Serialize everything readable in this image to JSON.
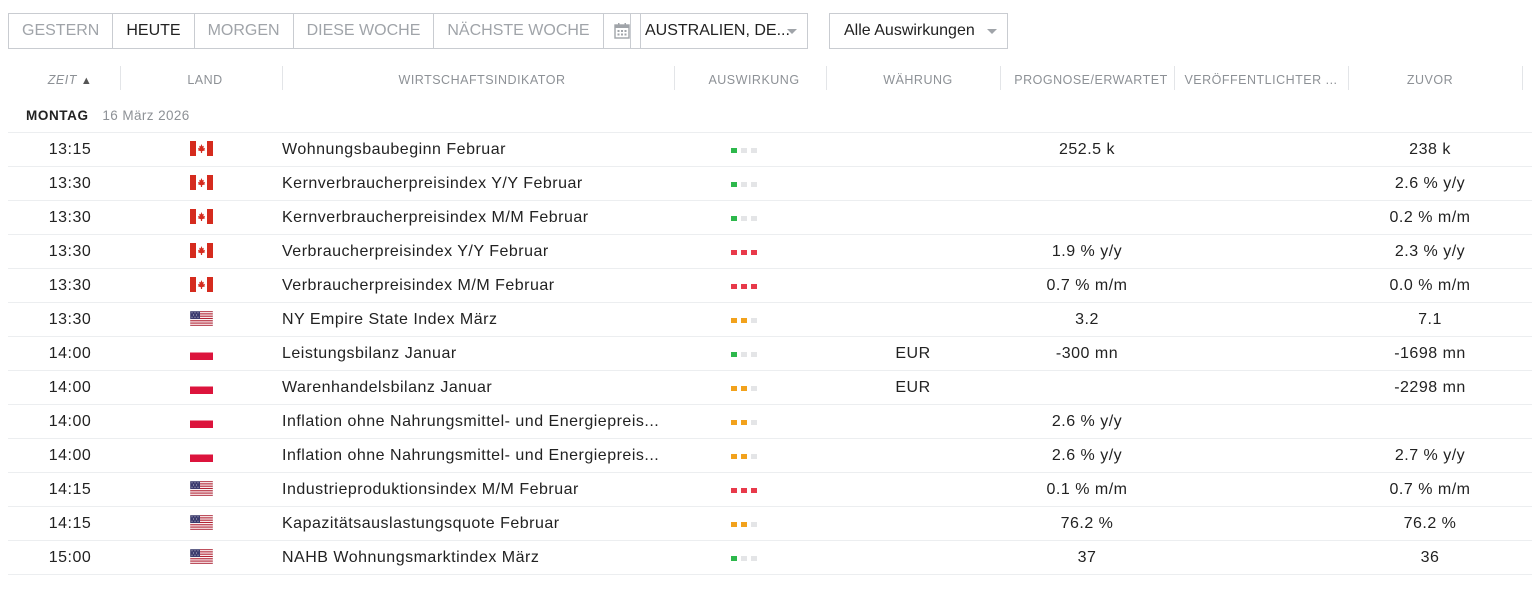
{
  "toolbar": {
    "date_buttons": [
      {
        "label": "GESTERN",
        "active": false
      },
      {
        "label": "HEUTE",
        "active": true
      },
      {
        "label": "MORGEN",
        "active": false
      },
      {
        "label": "DIESE WOCHE",
        "active": false
      },
      {
        "label": "NÄCHSTE WOCHE",
        "active": false
      }
    ],
    "calendar_icon": "calendar-icon",
    "country_filter": {
      "value": "AUSTRALIEN, DE..."
    },
    "impact_filter": {
      "value": "Alle Auswirkungen"
    }
  },
  "table": {
    "columns": {
      "time": "ZEIT",
      "country": "LAND",
      "indicator": "WIRTSCHAFTSINDIKATOR",
      "impact": "AUSWIRKUNG",
      "currency": "WÄHRUNG",
      "forecast": "PROGNOSE/ERWARTET",
      "published": "VERÖFFENTLICHTER ...",
      "previous": "ZUVOR"
    },
    "sort_indicator": "▲",
    "day": {
      "name": "MONTAG",
      "date": "16 März 2026"
    },
    "impact_colors": {
      "low": "#2db84c",
      "medium": "#f2a21c",
      "high": "#e8394a",
      "off": "#e4e5e7"
    },
    "rows": [
      {
        "time": "13:15",
        "flag": "canada-flag",
        "indicator": "Wohnungsbaubeginn Februar",
        "impact": 1,
        "currency": "",
        "forecast": "252.5 k",
        "published": "",
        "previous": "238 k"
      },
      {
        "time": "13:30",
        "flag": "canada-flag",
        "indicator": "Kernverbraucherpreisindex Y/Y Februar",
        "impact": 1,
        "currency": "",
        "forecast": "",
        "published": "",
        "previous": "2.6 % y/y"
      },
      {
        "time": "13:30",
        "flag": "canada-flag",
        "indicator": "Kernverbraucherpreisindex M/M Februar",
        "impact": 1,
        "currency": "",
        "forecast": "",
        "published": "",
        "previous": "0.2 % m/m"
      },
      {
        "time": "13:30",
        "flag": "canada-flag",
        "indicator": "Verbraucherpreisindex Y/Y Februar",
        "impact": 3,
        "currency": "",
        "forecast": "1.9 % y/y",
        "published": "",
        "previous": "2.3 % y/y"
      },
      {
        "time": "13:30",
        "flag": "canada-flag",
        "indicator": "Verbraucherpreisindex M/M Februar",
        "impact": 3,
        "currency": "",
        "forecast": "0.7 % m/m",
        "published": "",
        "previous": "0.0 % m/m"
      },
      {
        "time": "13:30",
        "flag": "usa-flag",
        "indicator": "NY Empire State Index März",
        "impact": 2,
        "currency": "",
        "forecast": "3.2",
        "published": "",
        "previous": "7.1"
      },
      {
        "time": "14:00",
        "flag": "poland-flag",
        "indicator": "Leistungsbilanz Januar",
        "impact": 1,
        "currency": "EUR",
        "forecast": "-300 mn",
        "published": "",
        "previous": "-1698 mn"
      },
      {
        "time": "14:00",
        "flag": "poland-flag",
        "indicator": "Warenhandelsbilanz Januar",
        "impact": 2,
        "currency": "EUR",
        "forecast": "",
        "published": "",
        "previous": "-2298 mn"
      },
      {
        "time": "14:00",
        "flag": "poland-flag",
        "indicator": "Inflation ohne Nahrungsmittel- und Energiepreis...",
        "impact": 2,
        "currency": "",
        "forecast": "2.6 % y/y",
        "published": "",
        "previous": ""
      },
      {
        "time": "14:00",
        "flag": "poland-flag",
        "indicator": "Inflation ohne Nahrungsmittel- und Energiepreis...",
        "impact": 2,
        "currency": "",
        "forecast": "2.6 % y/y",
        "published": "",
        "previous": "2.7 % y/y"
      },
      {
        "time": "14:15",
        "flag": "usa-flag",
        "indicator": "Industrieproduktionsindex M/M Februar",
        "impact": 3,
        "currency": "",
        "forecast": "0.1 % m/m",
        "published": "",
        "previous": "0.7 % m/m"
      },
      {
        "time": "14:15",
        "flag": "usa-flag",
        "indicator": "Kapazitätsauslastungsquote Februar",
        "impact": 2,
        "currency": "",
        "forecast": "76.2 %",
        "published": "",
        "previous": "76.2 %"
      },
      {
        "time": "15:00",
        "flag": "usa-flag",
        "indicator": "NAHB Wohnungsmarktindex März",
        "impact": 1,
        "currency": "",
        "forecast": "37",
        "published": "",
        "previous": "36"
      }
    ]
  }
}
